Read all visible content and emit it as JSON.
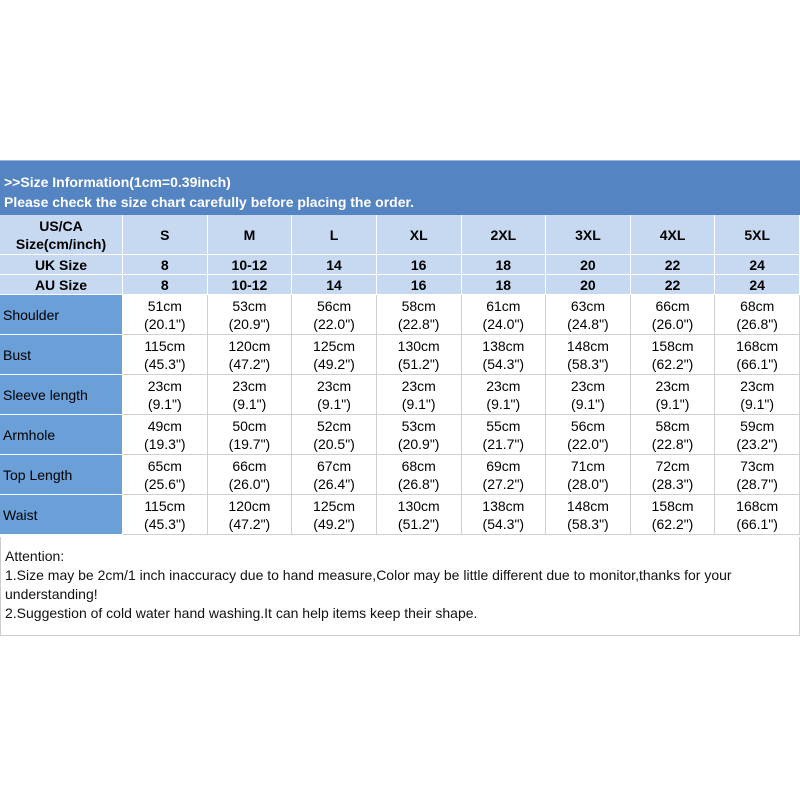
{
  "header": {
    "lines": [
      ">>Size Information(1cm=0.39inch)",
      "Please check the size chart carefully before placing the order."
    ]
  },
  "table": {
    "size_rows": [
      {
        "label": [
          "US/CA",
          "Size(cm/inch)"
        ],
        "values": [
          "S",
          "M",
          "L",
          "XL",
          "2XL",
          "3XL",
          "4XL",
          "5XL"
        ]
      },
      {
        "label": [
          "UK Size"
        ],
        "values": [
          "8",
          "10-12",
          "14",
          "16",
          "18",
          "20",
          "22",
          "24"
        ]
      },
      {
        "label": [
          "AU Size"
        ],
        "values": [
          "8",
          "10-12",
          "14",
          "16",
          "18",
          "20",
          "22",
          "24"
        ]
      }
    ],
    "rows": [
      {
        "label": "Shoulder",
        "cells": [
          [
            "51cm",
            "(20.1\")"
          ],
          [
            "53cm",
            "(20.9\")"
          ],
          [
            "56cm",
            "(22.0\")"
          ],
          [
            "58cm",
            "(22.8\")"
          ],
          [
            "61cm",
            "(24.0\")"
          ],
          [
            "63cm",
            "(24.8\")"
          ],
          [
            "66cm",
            "(26.0\")"
          ],
          [
            "68cm",
            "(26.8\")"
          ]
        ]
      },
      {
        "label": "Bust",
        "cells": [
          [
            "115cm",
            "(45.3\")"
          ],
          [
            "120cm",
            "(47.2\")"
          ],
          [
            "125cm",
            "(49.2\")"
          ],
          [
            "130cm",
            "(51.2\")"
          ],
          [
            "138cm",
            "(54.3\")"
          ],
          [
            "148cm",
            "(58.3\")"
          ],
          [
            "158cm",
            "(62.2\")"
          ],
          [
            "168cm",
            "(66.1\")"
          ]
        ]
      },
      {
        "label": "Sleeve length",
        "cells": [
          [
            "23cm",
            "(9.1\")"
          ],
          [
            "23cm",
            "(9.1\")"
          ],
          [
            "23cm",
            "(9.1\")"
          ],
          [
            "23cm",
            "(9.1\")"
          ],
          [
            "23cm",
            "(9.1\")"
          ],
          [
            "23cm",
            "(9.1\")"
          ],
          [
            "23cm",
            "(9.1\")"
          ],
          [
            "23cm",
            "(9.1\")"
          ]
        ]
      },
      {
        "label": "Armhole",
        "cells": [
          [
            "49cm",
            "(19.3\")"
          ],
          [
            "50cm",
            "(19.7\")"
          ],
          [
            "52cm",
            "(20.5\")"
          ],
          [
            "53cm",
            "(20.9\")"
          ],
          [
            "55cm",
            "(21.7\")"
          ],
          [
            "56cm",
            "(22.0\")"
          ],
          [
            "58cm",
            "(22.8\")"
          ],
          [
            "59cm",
            "(23.2\")"
          ]
        ]
      },
      {
        "label": "Top Length",
        "cells": [
          [
            "65cm",
            "(25.6\")"
          ],
          [
            "66cm",
            "(26.0\")"
          ],
          [
            "67cm",
            "(26.4\")"
          ],
          [
            "68cm",
            "(26.8\")"
          ],
          [
            "69cm",
            "(27.2\")"
          ],
          [
            "71cm",
            "(28.0\")"
          ],
          [
            "72cm",
            "(28.3\")"
          ],
          [
            "73cm",
            "(28.7\")"
          ]
        ]
      },
      {
        "label": "Waist",
        "cells": [
          [
            "115cm",
            "(45.3\")"
          ],
          [
            "120cm",
            "(47.2\")"
          ],
          [
            "125cm",
            "(49.2\")"
          ],
          [
            "130cm",
            "(51.2\")"
          ],
          [
            "138cm",
            "(54.3\")"
          ],
          [
            "148cm",
            "(58.3\")"
          ],
          [
            "158cm",
            "(62.2\")"
          ],
          [
            "168cm",
            "(66.1\")"
          ]
        ]
      }
    ]
  },
  "notes": [
    "Attention:",
    "1.Size may be 2cm/1 inch inaccuracy due to hand measure,Color may be little different due to monitor,thanks for your understanding!",
    "2.Suggestion of cold water hand washing.It can help items keep their shape."
  ]
}
